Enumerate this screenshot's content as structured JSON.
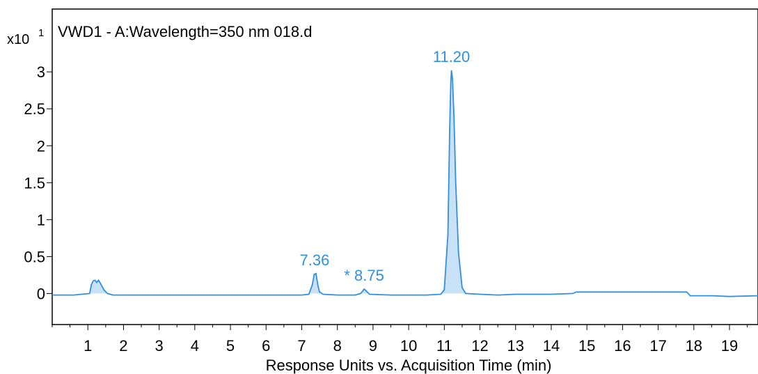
{
  "chart_data": {
    "type": "line",
    "title": "VWD1 - A:Wavelength=350 nm 018.d",
    "xlabel": "Response Units vs. Acquisition Time (min)",
    "ylabel": "",
    "y_multiplier": {
      "base": "x10",
      "exponent": "1"
    },
    "xlim": [
      0,
      19.8
    ],
    "ylim": [
      -0.42,
      3.85
    ],
    "x_ticks": [
      1,
      2,
      3,
      4,
      5,
      6,
      7,
      8,
      9,
      10,
      11,
      12,
      13,
      14,
      15,
      16,
      17,
      18,
      19
    ],
    "y_ticks": [
      0,
      0.5,
      1,
      1.5,
      2,
      2.5,
      3
    ],
    "y_tick_labels": [
      "0",
      "0.5",
      "1",
      "1.5",
      "2",
      "2.5",
      "3"
    ],
    "grid": false,
    "colors": {
      "signal": "#2f8fe0",
      "fill": "#c9e1f6",
      "label": "#2f8fe0",
      "axis": "#000000"
    },
    "series": [
      {
        "x": [
          0,
          0.6,
          1.05,
          1.1,
          1.15,
          1.2,
          1.25,
          1.3,
          1.35,
          1.45,
          1.55,
          1.7,
          2.5,
          3.5,
          4.5,
          5.5,
          6.5,
          7.0,
          7.2,
          7.3,
          7.35,
          7.4,
          7.45,
          7.5,
          7.6,
          8.0,
          8.5,
          8.65,
          8.72,
          8.75,
          8.8,
          8.9,
          9.5,
          10.5,
          10.9,
          11.0,
          11.1,
          11.15,
          11.18,
          11.2,
          11.23,
          11.27,
          11.32,
          11.4,
          11.5,
          11.6,
          12.0,
          12.5,
          13.0,
          14.0,
          14.6,
          14.7,
          15.5,
          16.5,
          17.5,
          17.8,
          17.9,
          18.5,
          19.0,
          19.8
        ],
        "y": [
          -0.02,
          -0.02,
          0.0,
          0.12,
          0.17,
          0.18,
          0.15,
          0.18,
          0.14,
          0.05,
          0.0,
          -0.02,
          -0.02,
          -0.02,
          -0.02,
          -0.02,
          -0.02,
          -0.02,
          -0.01,
          0.12,
          0.26,
          0.27,
          0.12,
          0.02,
          -0.01,
          -0.02,
          -0.02,
          0.0,
          0.04,
          0.06,
          0.04,
          -0.01,
          -0.02,
          -0.02,
          -0.01,
          0.05,
          0.8,
          2.2,
          2.85,
          3.02,
          2.9,
          2.4,
          1.5,
          0.55,
          0.08,
          0.0,
          -0.01,
          -0.02,
          -0.01,
          -0.01,
          0.0,
          0.02,
          0.02,
          0.02,
          0.02,
          0.02,
          -0.03,
          -0.03,
          -0.04,
          -0.03
        ]
      }
    ],
    "annotations": [
      {
        "text": "7.36",
        "x": 7.36,
        "y": 0.27
      },
      {
        "text": "* 8.75",
        "x": 8.75,
        "y": 0.06
      },
      {
        "text": "11.20",
        "x": 11.2,
        "y": 3.02
      }
    ]
  }
}
